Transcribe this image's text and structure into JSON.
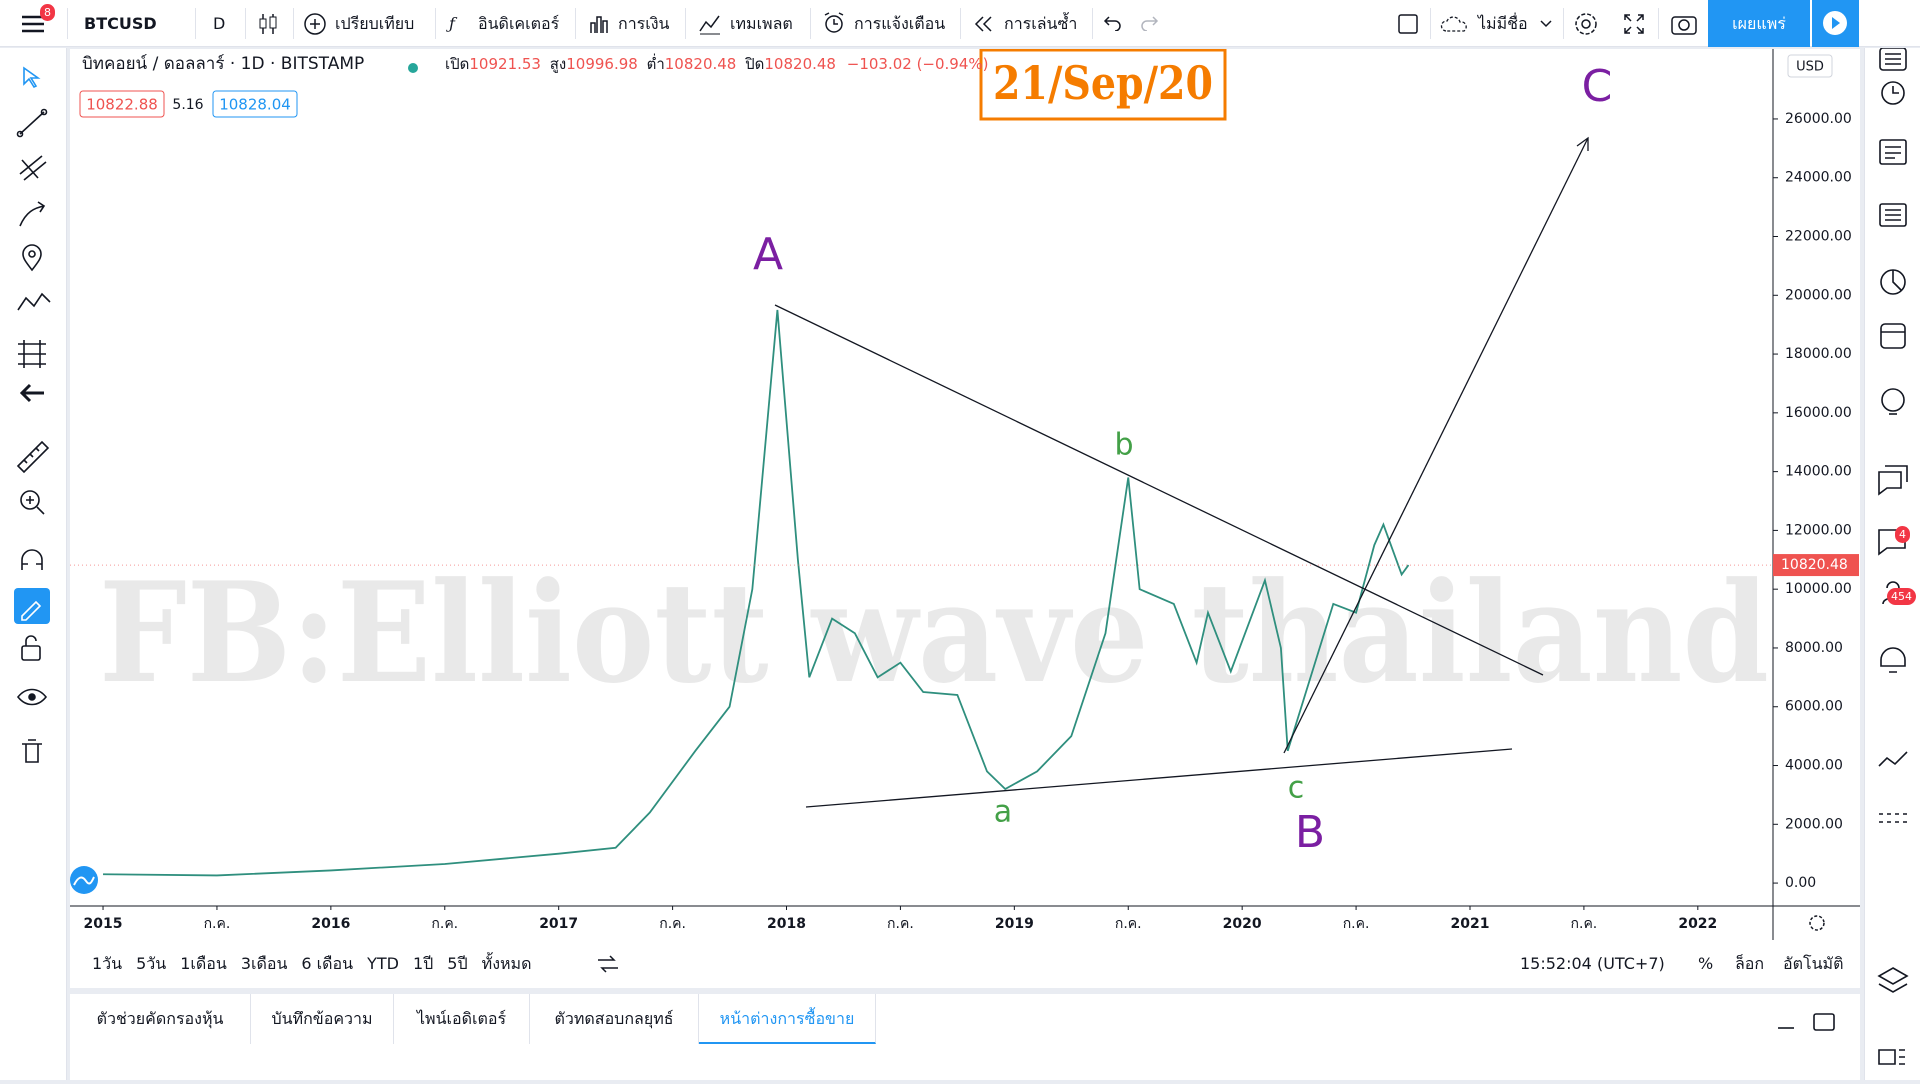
{
  "toolbar": {
    "badge": "8",
    "symbol": "BTCUSD",
    "interval": "D",
    "compare": "เปรียบเทียบ",
    "indicators": "อินดิเคเตอร์",
    "financials": "การเงิน",
    "templates": "เทมเพลต",
    "alerts": "การแจ้งเตือน",
    "replay": "การเล่นซ้ำ",
    "layout_name": "ไม่มีชื่อ",
    "publish": "เผยแพร่"
  },
  "legend": {
    "symbol": "บิทคอยน์ / ดอลลาร์ · 1D · BITSTAMP",
    "open_label": "เปิด",
    "open": "10921.53",
    "high_label": "สูง",
    "high": "10996.98",
    "low_label": "ต่ำ",
    "low": "10820.48",
    "close_label": "ปิด",
    "close": "10820.48",
    "change": "−103.02 (−0.94%)",
    "bid": "10822.88",
    "spread": "5.16",
    "ask": "10828.04"
  },
  "chart_data": {
    "type": "line",
    "currency": "USD",
    "color": "#2f8f7e",
    "x": [
      2015.0,
      2015.5,
      2016.0,
      2016.5,
      2017.0,
      2017.25,
      2017.4,
      2017.6,
      2017.75,
      2017.85,
      2017.96,
      2018.05,
      2018.1,
      2018.2,
      2018.3,
      2018.4,
      2018.5,
      2018.6,
      2018.75,
      2018.88,
      2018.96,
      2019.1,
      2019.25,
      2019.4,
      2019.5,
      2019.55,
      2019.7,
      2019.8,
      2019.85,
      2019.95,
      2020.1,
      2020.17,
      2020.2,
      2020.3,
      2020.4,
      2020.5,
      2020.58,
      2020.62,
      2020.7,
      2020.73
    ],
    "values": [
      300,
      260,
      430,
      650,
      1000,
      1200,
      2400,
      4500,
      6000,
      10000,
      19500,
      11000,
      7000,
      9000,
      8500,
      7000,
      7500,
      6500,
      6400,
      3800,
      3200,
      3800,
      5000,
      8500,
      13800,
      10000,
      9500,
      7500,
      9200,
      7200,
      10300,
      8000,
      4500,
      7000,
      9500,
      9200,
      11500,
      12200,
      10500,
      10820
    ],
    "last_price": 10820.48,
    "xlim": [
      2014.855,
      2022.33
    ],
    "xticks": [
      2015,
      {
        "value": 2015.5,
        "label": "ก.ค."
      },
      2016,
      {
        "value": 2016.5,
        "label": "ก.ค."
      },
      2017,
      {
        "value": 2017.5,
        "label": "ก.ค."
      },
      2018,
      {
        "value": 2018.5,
        "label": "ก.ค."
      },
      2019,
      {
        "value": 2019.5,
        "label": "ก.ค."
      },
      2020,
      {
        "value": 2020.5,
        "label": "ก.ค."
      },
      2021,
      {
        "value": 2021.5,
        "label": "ก.ค."
      },
      2022
    ],
    "ylim": [
      -780,
      28380
    ],
    "yticks": [
      {
        "value": 0,
        "label": "0.00"
      },
      {
        "value": 2000,
        "label": "2000.00"
      },
      {
        "value": 4000,
        "label": "4000.00"
      },
      {
        "value": 6000,
        "label": "6000.00"
      },
      {
        "value": 8000,
        "label": "8000.00"
      },
      {
        "value": 10000,
        "label": "10000.00"
      },
      {
        "value": 12000,
        "label": "12000.00"
      },
      {
        "value": 14000,
        "label": "14000.00"
      },
      {
        "value": 16000,
        "label": "16000.00"
      },
      {
        "value": 18000,
        "label": "18000.00"
      },
      {
        "value": 20000,
        "label": "20000.00"
      },
      {
        "value": 22000,
        "label": "22000.00"
      },
      {
        "value": 24000,
        "label": "24000.00"
      },
      {
        "value": 26000,
        "label": "26000.00"
      }
    ],
    "grid": false
  },
  "annotations": {
    "date": "21/Sep/20",
    "watermark": "FB:Elliott wave thailand",
    "A": "A",
    "b": "b",
    "a": "a",
    "c": "c",
    "B": "B",
    "C": "C"
  },
  "range_bar": {
    "ranges": [
      "1วัน",
      "5วัน",
      "1เดือน",
      "3เดือน",
      "6 เดือน",
      "YTD",
      "1ปี",
      "5ปี",
      "ทั้งหมด"
    ],
    "time": "15:52:04 (UTC+7)",
    "percent": "%",
    "log": "ล็อก",
    "auto": "อัตโนมัติ"
  },
  "bottom_tabs": [
    "ตัวช่วยคัดกรองหุ้น",
    "บันทึกข้อความ",
    "ไพน์เอดิเตอร์",
    "ตัวทดสอบกลยุทธ์",
    "หน้าต่างการซื้อขาย"
  ],
  "sidebar_badges": [
    "4",
    "454"
  ]
}
